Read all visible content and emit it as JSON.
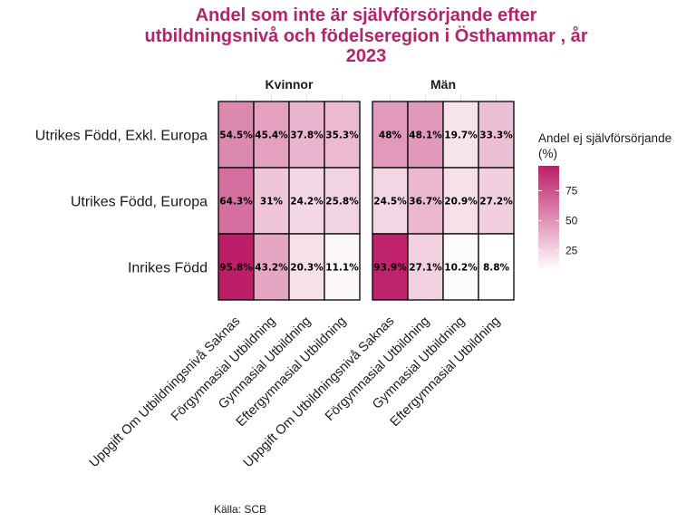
{
  "chart_data": {
    "type": "heatmap",
    "title_lines": [
      "Andel som inte är självförsörjande efter",
      "utbildningsnivå och födelseregion i Östhammar , år",
      "2023"
    ],
    "facets": [
      "Kvinnor",
      "Män"
    ],
    "rows": [
      "Utrikes Född, Exkl. Europa",
      "Utrikes Född, Europa",
      "Inrikes Född"
    ],
    "columns": [
      "Uppgift Om Utbildningsnivå Saknas",
      "Förgymnasial Utbildning",
      "Gymnasial Utbildning",
      "Eftergymnasial Utbildning"
    ],
    "values": [
      [
        [
          54.5,
          45.4,
          37.8,
          35.3
        ],
        [
          64.3,
          31,
          24.2,
          25.8
        ],
        [
          95.8,
          43.2,
          20.3,
          11.1
        ]
      ],
      [
        [
          48,
          48.1,
          19.7,
          33.3
        ],
        [
          24.5,
          36.7,
          20.9,
          27.2
        ],
        [
          93.9,
          27.1,
          10.2,
          8.8
        ]
      ]
    ],
    "labels": [
      [
        [
          "54.5%",
          "45.4%",
          "37.8%",
          "35.3%"
        ],
        [
          "64.3%",
          "31%",
          "24.2%",
          "25.8%"
        ],
        [
          "95.8%",
          "43.2%",
          "20.3%",
          "11.1%"
        ]
      ],
      [
        [
          "48%",
          "48.1%",
          "19.7%",
          "33.3%"
        ],
        [
          "24.5%",
          "36.7%",
          "20.9%",
          "27.2%"
        ],
        [
          "93.9%",
          "27.1%",
          "10.2%",
          "8.8%"
        ]
      ]
    ],
    "legend": {
      "title_lines": [
        "Andel ej självförsörjande",
        "(%)"
      ],
      "ticks": [
        25,
        50,
        75
      ],
      "tick_labels": [
        "25",
        "50",
        "75"
      ],
      "range": [
        8.8,
        95.8
      ],
      "color_low": "#ffffff",
      "color_high": "#bd1e68"
    },
    "caption": "Källa: SCB"
  },
  "colors": {
    "title": "#b5246a",
    "cell_border": "#000000",
    "grid": "#e5e5e5"
  }
}
